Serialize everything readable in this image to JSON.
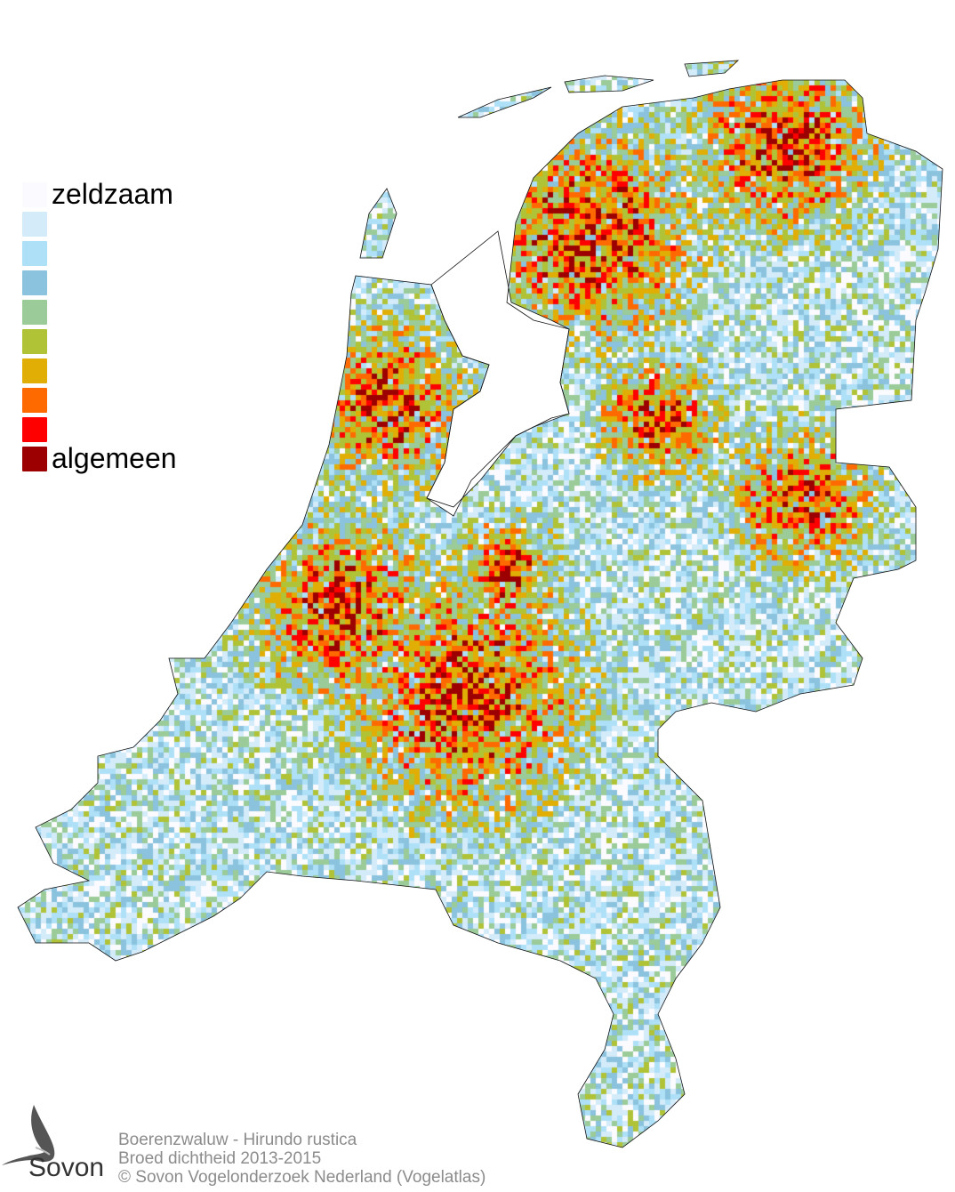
{
  "legend": {
    "items": [
      {
        "label": "zeldzaam",
        "color": "#fbfbff"
      },
      {
        "label": "",
        "color": "#d4ebfa"
      },
      {
        "label": "",
        "color": "#aee0f8"
      },
      {
        "label": "",
        "color": "#8bc2dd"
      },
      {
        "label": "",
        "color": "#9acb98"
      },
      {
        "label": "",
        "color": "#b0c236"
      },
      {
        "label": "",
        "color": "#e0ae05"
      },
      {
        "label": "",
        "color": "#ff6a00"
      },
      {
        "label": "",
        "color": "#ff0000"
      },
      {
        "label": "algemeen",
        "color": "#9c0000"
      }
    ]
  },
  "footer": {
    "line1": "Boerenzwaluw - Hirundo rustica",
    "line2": "Broed dichtheid 2013-2015",
    "line3": "© Sovon Vogelonderzoek Nederland (Vogelatlas)"
  },
  "logo": {
    "text": "Sovon"
  }
}
